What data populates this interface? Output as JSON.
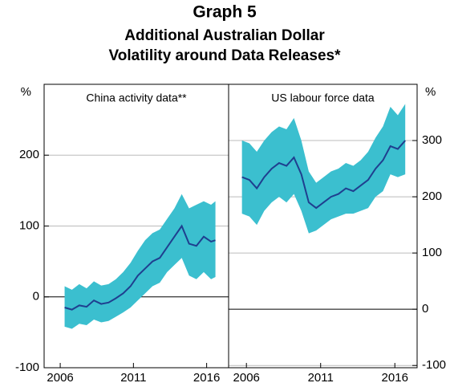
{
  "title": "Graph 5",
  "subtitle": [
    "Additional Australian Dollar",
    "Volatility around Data Releases*"
  ],
  "chart_data": [
    {
      "type": "line",
      "title": "China activity data**",
      "y_unit": "%",
      "x": [
        2006.3,
        2006.8,
        2007.3,
        2007.8,
        2008.3,
        2008.8,
        2009.3,
        2009.8,
        2010.3,
        2010.8,
        2011.3,
        2011.8,
        2012.3,
        2012.8,
        2013.3,
        2013.8,
        2014.3,
        2014.8,
        2015.3,
        2015.8,
        2016.3,
        2016.6
      ],
      "series": [
        {
          "color": "#1f3f8f",
          "band_color": "#3bbfcf",
          "values": [
            -15,
            -18,
            -12,
            -14,
            -5,
            -10,
            -8,
            -2,
            5,
            15,
            30,
            40,
            50,
            55,
            70,
            85,
            100,
            75,
            72,
            85,
            78,
            80
          ],
          "lower": [
            -42,
            -45,
            -38,
            -40,
            -32,
            -36,
            -34,
            -28,
            -22,
            -15,
            -5,
            5,
            15,
            20,
            35,
            45,
            55,
            30,
            25,
            35,
            25,
            28
          ],
          "upper": [
            15,
            10,
            18,
            12,
            22,
            16,
            18,
            25,
            35,
            48,
            65,
            80,
            90,
            95,
            110,
            125,
            145,
            125,
            130,
            135,
            130,
            135
          ]
        }
      ],
      "xlim": [
        2004.9,
        2017.5
      ],
      "xticks": [
        2006,
        2011,
        2016
      ],
      "ylim": [
        -100,
        300
      ],
      "yticks": [
        -100,
        0,
        100,
        200
      ],
      "grid": true
    },
    {
      "type": "line",
      "title": "US labour force data",
      "y_unit": "%",
      "x": [
        2005.7,
        2006.2,
        2006.7,
        2007.2,
        2007.7,
        2008.2,
        2008.7,
        2009.2,
        2009.7,
        2010.2,
        2010.7,
        2011.2,
        2011.7,
        2012.2,
        2012.7,
        2013.2,
        2013.7,
        2014.2,
        2014.7,
        2015.2,
        2015.7,
        2016.2,
        2016.7
      ],
      "series": [
        {
          "color": "#1f3f8f",
          "band_color": "#3bbfcf",
          "values": [
            235,
            230,
            215,
            235,
            250,
            260,
            255,
            270,
            240,
            190,
            180,
            190,
            200,
            205,
            215,
            210,
            220,
            230,
            250,
            265,
            290,
            285,
            300
          ],
          "lower": [
            170,
            165,
            150,
            175,
            190,
            200,
            190,
            205,
            175,
            135,
            140,
            150,
            160,
            165,
            170,
            170,
            175,
            180,
            200,
            210,
            240,
            235,
            240
          ],
          "upper": [
            300,
            295,
            280,
            300,
            315,
            325,
            320,
            340,
            300,
            245,
            225,
            235,
            245,
            250,
            260,
            255,
            265,
            280,
            305,
            325,
            360,
            345,
            365
          ]
        }
      ],
      "xlim": [
        2004.8,
        2017.5
      ],
      "xticks": [
        2006,
        2011,
        2016
      ],
      "ylim": [
        -104,
        400
      ],
      "yticks": [
        -100,
        0,
        100,
        200,
        300
      ],
      "grid": true
    }
  ]
}
